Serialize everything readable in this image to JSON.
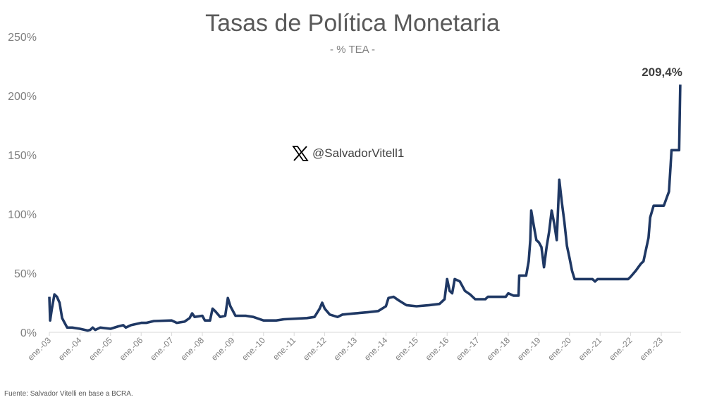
{
  "chart_data": {
    "type": "line",
    "title": "Tasas de Política Monetaria",
    "subtitle": "- % TEA -",
    "xlabel": "",
    "ylabel": "",
    "ylim": [
      0,
      250
    ],
    "y_ticks": [
      "0%",
      "50%",
      "100%",
      "150%",
      "200%",
      "250%"
    ],
    "x_ticks": [
      "ene.-03",
      "ene.-04",
      "ene.-05",
      "ene.-06",
      "ene.-07",
      "ene.-08",
      "ene.-09",
      "ene.-10",
      "ene.-11",
      "ene.-12",
      "ene.-13",
      "ene.-14",
      "ene.-15",
      "ene.-16",
      "ene.-17",
      "ene.-18",
      "ene.-19",
      "ene.-20",
      "ene.-21",
      "ene.-22",
      "ene.-23"
    ],
    "grid": false,
    "line_color": "#1f3864",
    "last_value_label": "209,4%",
    "series": [
      {
        "points": [
          [
            "2003-01",
            30
          ],
          [
            "2003-01-10",
            10
          ],
          [
            "2003-02",
            20
          ],
          [
            "2003-03",
            32
          ],
          [
            "2003-04",
            30
          ],
          [
            "2003-05",
            25
          ],
          [
            "2003-06",
            12
          ],
          [
            "2003-07",
            8
          ],
          [
            "2003-08",
            4
          ],
          [
            "2003-10",
            4
          ],
          [
            "2004-01",
            3
          ],
          [
            "2004-04",
            1.5
          ],
          [
            "2004-05",
            2
          ],
          [
            "2004-06",
            4
          ],
          [
            "2004-07",
            2
          ],
          [
            "2004-09",
            4
          ],
          [
            "2005-01",
            3
          ],
          [
            "2005-04",
            5
          ],
          [
            "2005-06",
            6
          ],
          [
            "2005-07",
            4
          ],
          [
            "2005-09",
            6
          ],
          [
            "2006-01",
            8
          ],
          [
            "2006-03",
            8
          ],
          [
            "2006-06",
            9.5
          ],
          [
            "2007-01",
            10
          ],
          [
            "2007-03",
            8
          ],
          [
            "2007-06",
            9
          ],
          [
            "2007-08",
            12
          ],
          [
            "2007-09",
            16
          ],
          [
            "2007-10",
            13
          ],
          [
            "2008-01",
            14
          ],
          [
            "2008-02",
            10
          ],
          [
            "2008-04",
            10
          ],
          [
            "2008-05",
            20
          ],
          [
            "2008-06",
            18
          ],
          [
            "2008-08",
            13
          ],
          [
            "2008-10",
            14
          ],
          [
            "2008-11",
            29
          ],
          [
            "2008-12",
            22
          ],
          [
            "2009-02",
            14
          ],
          [
            "2009-06",
            14
          ],
          [
            "2009-09",
            13
          ],
          [
            "2010-01",
            10
          ],
          [
            "2010-06",
            10
          ],
          [
            "2010-09",
            11
          ],
          [
            "2011-06",
            12
          ],
          [
            "2011-09",
            13
          ],
          [
            "2011-11",
            20
          ],
          [
            "2011-12",
            25
          ],
          [
            "2012-01",
            20
          ],
          [
            "2012-03",
            15
          ],
          [
            "2012-06",
            13
          ],
          [
            "2012-08",
            15
          ],
          [
            "2013-01",
            16
          ],
          [
            "2013-06",
            17
          ],
          [
            "2013-10",
            18
          ],
          [
            "2014-01",
            22
          ],
          [
            "2014-02",
            29
          ],
          [
            "2014-04",
            30
          ],
          [
            "2014-06",
            27
          ],
          [
            "2014-09",
            23
          ],
          [
            "2015-01",
            22
          ],
          [
            "2015-06",
            23
          ],
          [
            "2015-10",
            24
          ],
          [
            "2015-12",
            28
          ],
          [
            "2016-01",
            45
          ],
          [
            "2016-02",
            35
          ],
          [
            "2016-03",
            33
          ],
          [
            "2016-04",
            45
          ],
          [
            "2016-06",
            43
          ],
          [
            "2016-08",
            35
          ],
          [
            "2016-10",
            32
          ],
          [
            "2016-12",
            28
          ],
          [
            "2017-04",
            28
          ],
          [
            "2017-05",
            30
          ],
          [
            "2017-12",
            30
          ],
          [
            "2018-01",
            33
          ],
          [
            "2018-03",
            31
          ],
          [
            "2018-05",
            31
          ],
          [
            "2018-05-10",
            48
          ],
          [
            "2018-08",
            48
          ],
          [
            "2018-09",
            60
          ],
          [
            "2018-09-20",
            78
          ],
          [
            "2018-10",
            103
          ],
          [
            "2018-11",
            90
          ],
          [
            "2018-12",
            78
          ],
          [
            "2019-01",
            76
          ],
          [
            "2019-02",
            72
          ],
          [
            "2019-03",
            55
          ],
          [
            "2019-04",
            72
          ],
          [
            "2019-05",
            85
          ],
          [
            "2019-06",
            103
          ],
          [
            "2019-07",
            92
          ],
          [
            "2019-08",
            78
          ],
          [
            "2019-08-20",
            110
          ],
          [
            "2019-09",
            129
          ],
          [
            "2019-10",
            110
          ],
          [
            "2019-11",
            93
          ],
          [
            "2019-12",
            73
          ],
          [
            "2020-01",
            63
          ],
          [
            "2020-02",
            52
          ],
          [
            "2020-03",
            45
          ],
          [
            "2020-10",
            45
          ],
          [
            "2020-11",
            43
          ],
          [
            "2020-12",
            45
          ],
          [
            "2021-12",
            45
          ],
          [
            "2022-01",
            47
          ],
          [
            "2022-03",
            52
          ],
          [
            "2022-04",
            55
          ],
          [
            "2022-05",
            58
          ],
          [
            "2022-06",
            60
          ],
          [
            "2022-07",
            70
          ],
          [
            "2022-08",
            80
          ],
          [
            "2022-08-20",
            97
          ],
          [
            "2022-10",
            107
          ],
          [
            "2023-02",
            107
          ],
          [
            "2023-03",
            113
          ],
          [
            "2023-04",
            119
          ],
          [
            "2023-04-20",
            140
          ],
          [
            "2023-05",
            154
          ],
          [
            "2023-08",
            154
          ],
          [
            "2023-08-14",
            209.4
          ]
        ]
      }
    ]
  },
  "watermark": {
    "handle": "@SalvadorVitell1",
    "icon": "x-logo-icon"
  },
  "source": "Fuente: Salvador Vitelli en base a BCRA."
}
